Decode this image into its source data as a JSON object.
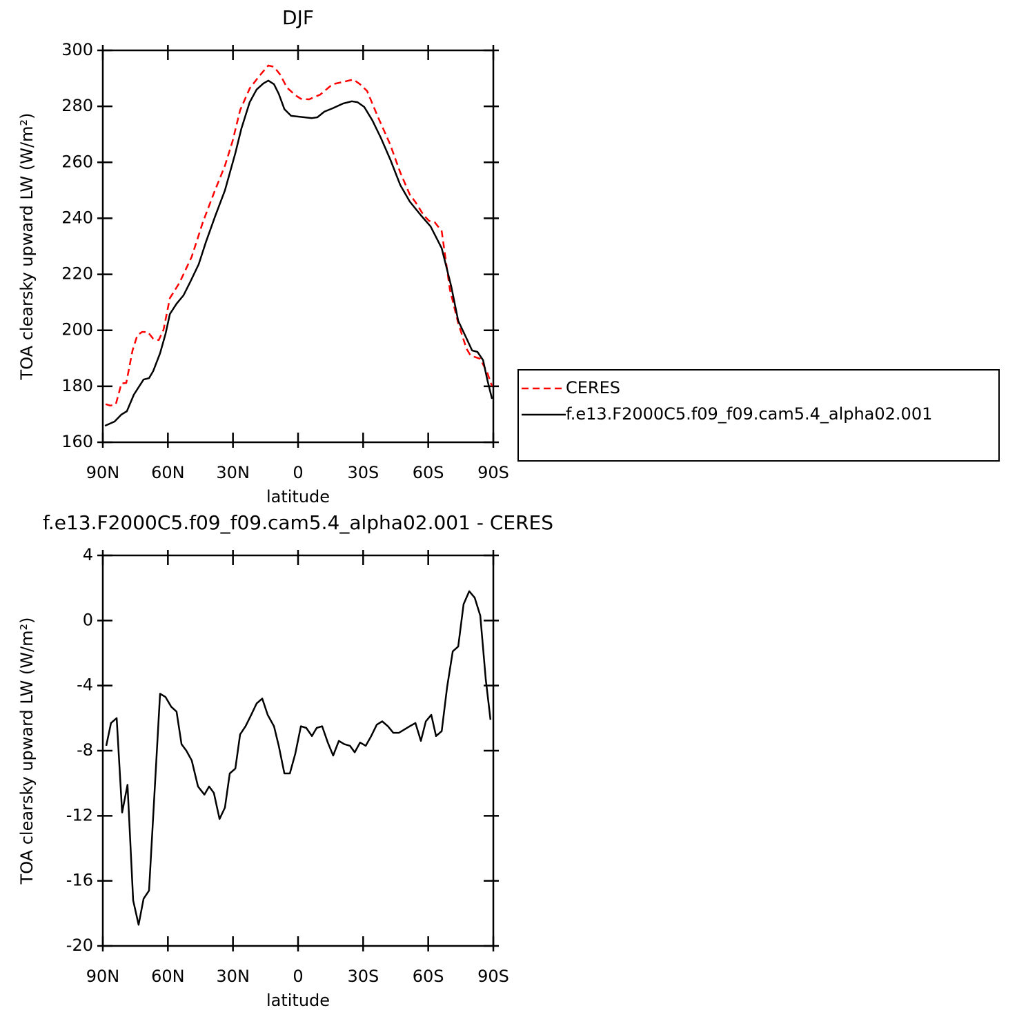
{
  "chart_data": [
    {
      "type": "line",
      "title": "DJF",
      "xlabel": "latitude",
      "ylabel": "TOA clearsky upward LW (W/m²)",
      "xlim": [
        90,
        -90
      ],
      "xticks": [
        {
          "value": 90,
          "label": "90N"
        },
        {
          "value": 60,
          "label": "60N"
        },
        {
          "value": 30,
          "label": "30N"
        },
        0,
        {
          "value": -30,
          "label": "30S"
        },
        {
          "value": -60,
          "label": "60S"
        },
        {
          "value": -90,
          "label": "90S"
        }
      ],
      "ylim": [
        160,
        300
      ],
      "yticks": [
        160,
        180,
        200,
        220,
        240,
        260,
        280,
        300
      ],
      "legend": "outside-right",
      "series": [
        {
          "name": "CERES",
          "color": "#ff0000",
          "linestyle": "dashed",
          "x": [
            88.7,
            86.5,
            84,
            81.4,
            79.2,
            76.3,
            74.1,
            71.9,
            69.3,
            66.8,
            64.2,
            62,
            59.1,
            54.7,
            49,
            43.9,
            38.8,
            33.7,
            30.2,
            26.7,
            22.3,
            17.8,
            13.7,
            11.1,
            8.3,
            5.1,
            1.3,
            -1.3,
            -5.1,
            -10.2,
            -15.9,
            -20.7,
            -25.5,
            -28.6,
            -31.8,
            -36.9,
            -42.3,
            -47.1,
            -51.5,
            -54.1,
            -57.9,
            -60.4,
            -63,
            -66.2,
            -70,
            -73.8,
            -77.6,
            -79.5,
            -82.1,
            -84,
            -87.2,
            -89.4
          ],
          "values": [
            173.6,
            173.1,
            173.6,
            181,
            181.2,
            192.8,
            198.2,
            199.4,
            199.4,
            197,
            196.5,
            200.2,
            211.5,
            216.9,
            226.3,
            238.6,
            249,
            258.8,
            267.5,
            278.6,
            286.4,
            290.9,
            294.6,
            294.1,
            291.4,
            286.7,
            284,
            282.7,
            282.5,
            284.2,
            287.9,
            288.7,
            289.6,
            287.9,
            285.5,
            276.1,
            266.7,
            256.4,
            248.5,
            245.8,
            241.1,
            239.1,
            238.6,
            235.4,
            214.5,
            202.6,
            193.5,
            191,
            190.3,
            189.8,
            184.9,
            180
          ]
        },
        {
          "name": "f.e13.F2000C5.f09_f09.cam5.4_alpha02.001",
          "color": "#000000",
          "linestyle": "solid",
          "x": [
            89,
            84.6,
            81.4,
            78.9,
            75.7,
            71.2,
            68.7,
            66.8,
            63.6,
            61.1,
            59.1,
            56,
            52.8,
            49.6,
            45.8,
            42.6,
            38.2,
            33.7,
            28.9,
            26.1,
            22.3,
            19.1,
            16,
            13.7,
            11.1,
            8.9,
            6.3,
            3.2,
            -2.9,
            -6.4,
            -8.9,
            -12.1,
            -15.9,
            -20.7,
            -24.8,
            -27.4,
            -30.5,
            -34.3,
            -38.2,
            -42.6,
            -47.1,
            -51.5,
            -56.6,
            -61.1,
            -66.2,
            -70.6,
            -73.8,
            -77.6,
            -80.2,
            -82.7,
            -85.3,
            -87.2,
            -89.4
          ],
          "values": [
            165.9,
            167.4,
            169.9,
            171.1,
            177,
            182.4,
            182.9,
            185.4,
            191.8,
            198.7,
            205.8,
            209.5,
            212.5,
            217.4,
            223.6,
            231.2,
            240.8,
            250,
            263.3,
            272.1,
            281.5,
            286,
            288.2,
            289.2,
            287.9,
            284.5,
            279,
            276.6,
            276.1,
            275.8,
            276.1,
            278.1,
            279.3,
            281,
            281.8,
            281.5,
            279.8,
            274.9,
            268.7,
            260.8,
            251.9,
            246,
            241.1,
            237.1,
            229.3,
            215.7,
            203.4,
            197.2,
            192.8,
            192.3,
            189.3,
            182.4,
            175.5
          ]
        }
      ]
    },
    {
      "type": "line",
      "title": "f.e13.F2000C5.f09_f09.cam5.4_alpha02.001 - CERES",
      "xlabel": "latitude",
      "ylabel": "TOA clearsky upward LW (W/m²)",
      "xlim": [
        90,
        -90
      ],
      "xticks": [
        {
          "value": 90,
          "label": "90N"
        },
        {
          "value": 60,
          "label": "60N"
        },
        {
          "value": 30,
          "label": "30N"
        },
        0,
        {
          "value": -30,
          "label": "30S"
        },
        {
          "value": -60,
          "label": "60S"
        },
        {
          "value": -90,
          "label": "90S"
        }
      ],
      "ylim": [
        -20,
        4
      ],
      "yticks": [
        -20,
        -16,
        -12,
        -8,
        -4,
        0,
        4
      ],
      "series": [
        {
          "color": "#000000",
          "linestyle": "solid",
          "x": [
            88.4,
            86.2,
            83.6,
            81.1,
            78.6,
            76,
            73.5,
            71.2,
            68.7,
            63.6,
            61.1,
            58.5,
            56,
            53.7,
            51.5,
            49,
            46.1,
            43.2,
            41,
            38.8,
            36.2,
            33.7,
            31.5,
            28.9,
            26.7,
            24.2,
            21.6,
            19.1,
            16.5,
            14,
            11.1,
            8.9,
            6.3,
            3.8,
            1.3,
            -1.3,
            -3.8,
            -6.4,
            -8.6,
            -11.1,
            -13.7,
            -16.2,
            -18.8,
            -21.3,
            -23.9,
            -26.1,
            -28.6,
            -31.2,
            -33.7,
            -36.3,
            -38.8,
            -41.4,
            -43.9,
            -46.5,
            -49,
            -51.5,
            -54.1,
            -56.6,
            -58.9,
            -61.4,
            -63.6,
            -66.2,
            -68.7,
            -71.3,
            -73.8,
            -76.3,
            -78.9,
            -81.4,
            -84,
            -86.5,
            -88.7
          ],
          "values": [
            -7.7,
            -6.3,
            -6.0,
            -11.8,
            -10.1,
            -17.2,
            -18.7,
            -17.1,
            -16.6,
            -4.5,
            -4.7,
            -5.3,
            -5.6,
            -7.6,
            -8.0,
            -8.6,
            -10.2,
            -10.7,
            -10.2,
            -10.6,
            -12.2,
            -11.5,
            -9.4,
            -9.1,
            -7.0,
            -6.5,
            -5.8,
            -5.1,
            -4.8,
            -5.8,
            -6.5,
            -7.7,
            -9.4,
            -9.4,
            -8.2,
            -6.5,
            -6.6,
            -7.1,
            -6.6,
            -6.5,
            -7.5,
            -8.3,
            -7.4,
            -7.6,
            -7.7,
            -8.1,
            -7.5,
            -7.7,
            -7.1,
            -6.4,
            -6.2,
            -6.5,
            -6.9,
            -6.9,
            -6.7,
            -6.5,
            -6.3,
            -7.4,
            -6.2,
            -5.8,
            -7.1,
            -6.8,
            -4.1,
            -1.9,
            -1.6,
            1.0,
            1.8,
            1.4,
            0.3,
            -3.6,
            -6.1
          ]
        }
      ]
    }
  ]
}
